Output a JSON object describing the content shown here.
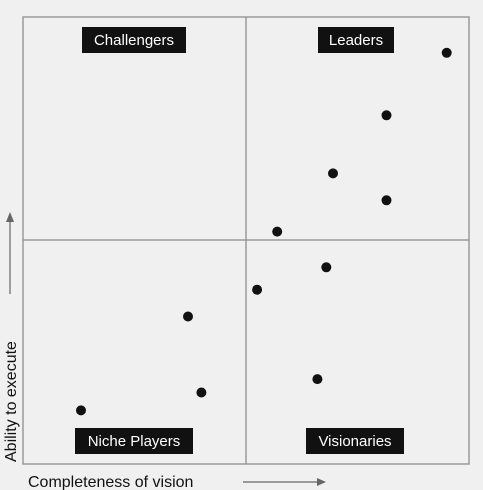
{
  "chart_data": {
    "type": "scatter",
    "title": "",
    "xlabel": "Completeness of vision",
    "ylabel": "Ability to execute",
    "xlim": [
      0,
      10
    ],
    "ylim": [
      0,
      10
    ],
    "grid": true,
    "quadrants": {
      "top_left": "Challengers",
      "top_right": "Leaders",
      "bottom_left": "Niche Players",
      "bottom_right": "Visionaries"
    },
    "points": [
      {
        "x": 9.5,
        "y": 9.2
      },
      {
        "x": 8.15,
        "y": 7.8
      },
      {
        "x": 6.95,
        "y": 6.5
      },
      {
        "x": 8.15,
        "y": 5.9
      },
      {
        "x": 5.7,
        "y": 5.2
      },
      {
        "x": 6.8,
        "y": 4.4
      },
      {
        "x": 5.25,
        "y": 3.9
      },
      {
        "x": 3.7,
        "y": 3.3
      },
      {
        "x": 6.6,
        "y": 1.9
      },
      {
        "x": 4.0,
        "y": 1.6
      },
      {
        "x": 1.3,
        "y": 1.2
      }
    ],
    "colors": {
      "background": "#f0f0f0",
      "grid": "#9a9a9a",
      "point": "#111111",
      "label_bg": "#111111",
      "label_text": "#ffffff"
    }
  }
}
